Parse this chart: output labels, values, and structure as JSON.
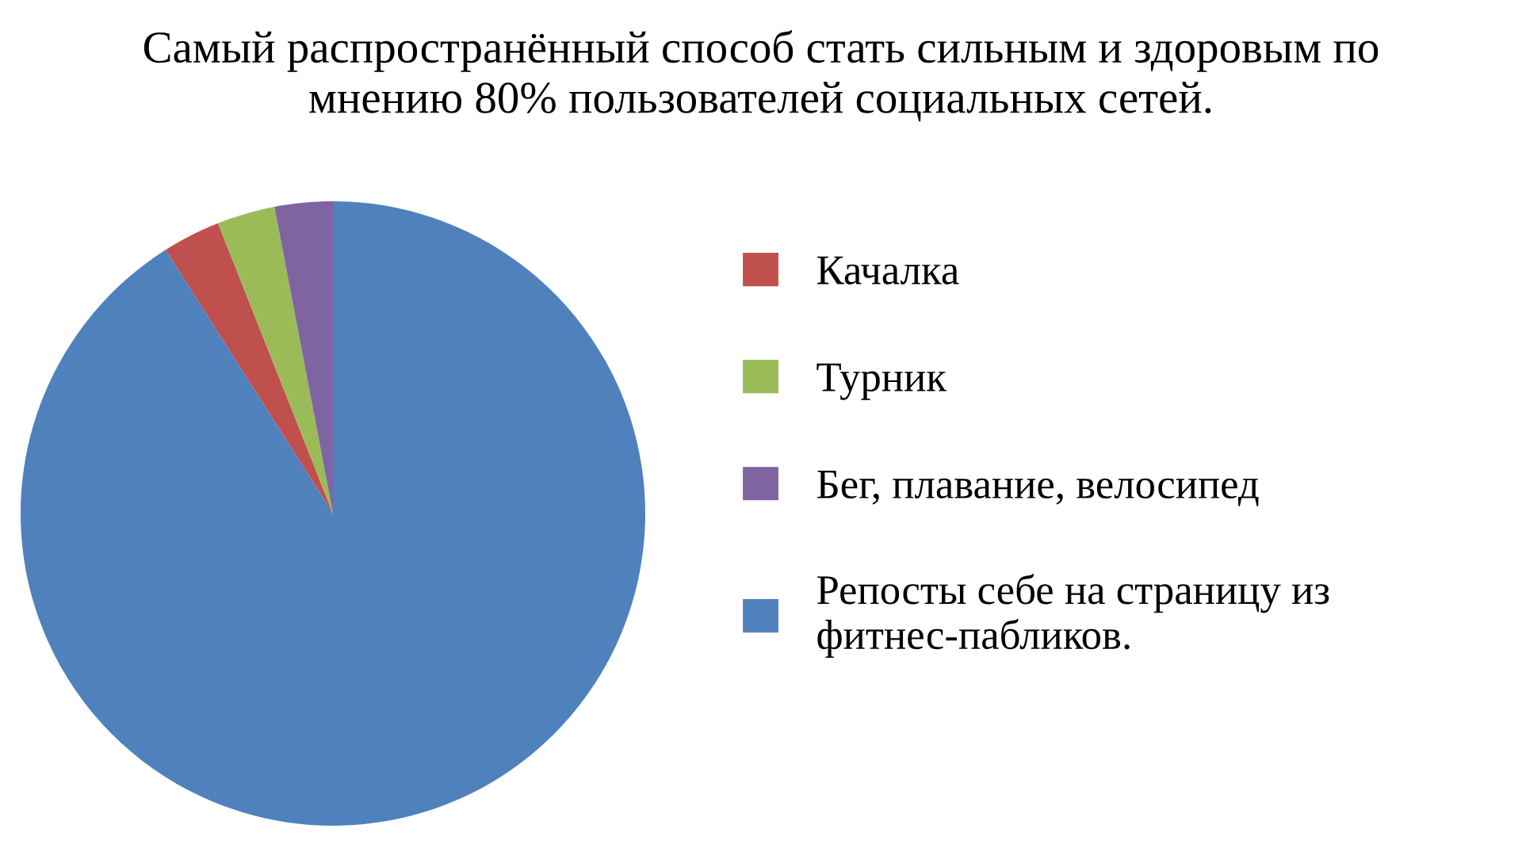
{
  "chart_data": {
    "type": "pie",
    "title": "Самый распространённый способ стать сильным и здоровым по мнению 80% пользователей социальных сетей.",
    "categories": [
      "Качалка",
      "Турник",
      "Бег, плавание, велосипед",
      "Репосты себе на страницу из фитнес-пабликов."
    ],
    "values": [
      3,
      3,
      3,
      91
    ],
    "colors": [
      "#c0504d",
      "#9bbb59",
      "#8064a2",
      "#4f81bd"
    ],
    "legend": "right"
  }
}
